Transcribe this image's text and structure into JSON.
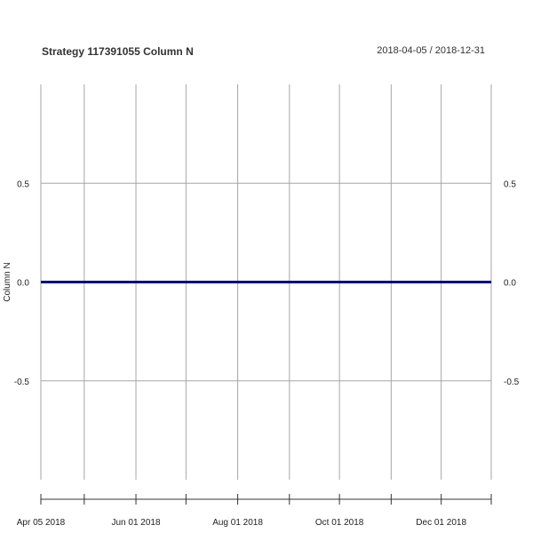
{
  "chart_data": {
    "type": "line",
    "title": "Strategy 117391055 Column N",
    "date_range": "2018-04-05 / 2018-12-31",
    "ylabel": "Column N",
    "ylim": [
      -1,
      1
    ],
    "xlim": [
      "2018-04-05",
      "2018-12-31"
    ],
    "y_ticks": [
      "-0.5",
      "0.0",
      "0.5"
    ],
    "x_tick_labels": [
      "Apr 05 2018",
      "Jun 01 2018",
      "Aug 01 2018",
      "Oct 01 2018",
      "Dec 01 2018"
    ],
    "grid": true,
    "series": [
      {
        "color": "#000080",
        "x": [
          "2018-04-05",
          "2018-12-31"
        ],
        "values": [
          0,
          0
        ]
      }
    ]
  }
}
